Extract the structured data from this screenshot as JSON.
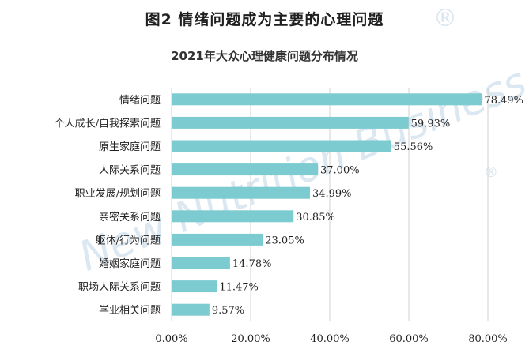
{
  "figure_title": "图2  情绪问题成为主要的心理问题",
  "watermark": {
    "brand_text": "New Nutrition Business",
    "registered_mark": "®"
  },
  "colors": {
    "bar": "#7ccbd0",
    "grid": "#d0d0d0",
    "watermark": "#dbe7f1"
  },
  "chart_data": {
    "type": "bar",
    "orientation": "horizontal",
    "title": "2021年大众心理健康问题分布情况",
    "categories": [
      "情绪问题",
      "个人成长/自我探索问题",
      "原生家庭问题",
      "人际关系问题",
      "职业发展/规划问题",
      "亲密关系问题",
      "躯体/行为问题",
      "婚姻家庭问题",
      "职场人际关系问题",
      "学业相关问题"
    ],
    "values": [
      78.49,
      59.93,
      55.56,
      37.0,
      34.99,
      30.85,
      23.05,
      14.78,
      11.47,
      9.57
    ],
    "value_labels": [
      "78.49%",
      "59.93%",
      "55.56%",
      "37.00%",
      "34.99%",
      "30.85%",
      "23.05%",
      "14.78%",
      "11.47%",
      "9.57%"
    ],
    "xlim": [
      0,
      80
    ],
    "x_ticks": [
      0,
      20,
      40,
      60,
      80
    ],
    "x_tick_labels": [
      "0.00%",
      "20.00%",
      "40.00%",
      "60.00%",
      "80.00%"
    ],
    "grid": true,
    "legend": "none"
  }
}
